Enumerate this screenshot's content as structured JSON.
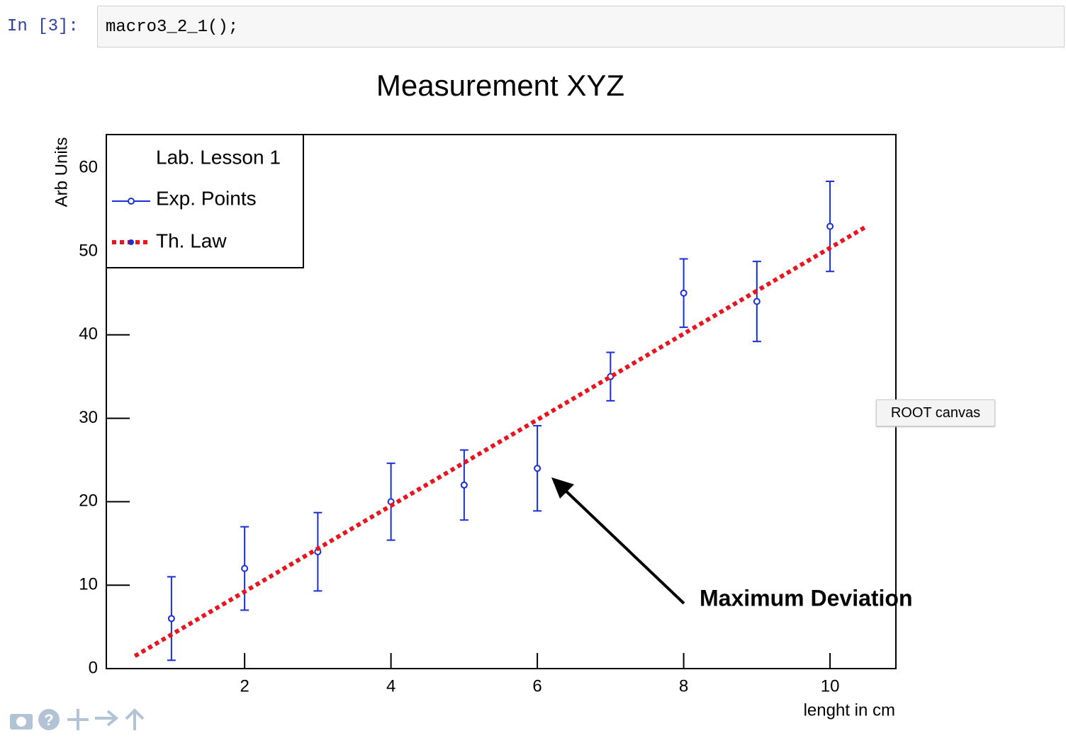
{
  "prompt": "In [3]:",
  "code": "macro3_2_1();",
  "tooltip": "ROOT canvas",
  "chart_data": {
    "type": "scatter",
    "title": "Measurement XYZ",
    "x_label": "lenght in cm",
    "y_label": "Arb Units",
    "xlim": [
      0.11,
      10.9
    ],
    "ylim": [
      0,
      64
    ],
    "xticks": [
      2,
      4,
      6,
      8,
      10
    ],
    "yticks": [
      0,
      10,
      20,
      30,
      40,
      50,
      60
    ],
    "legend_title": "Lab. Lesson 1",
    "legend": "top-left",
    "annotation": "Maximum Deviation",
    "series": [
      {
        "name": "Exp. Points",
        "mode": "markers",
        "color": "#1a2fd6",
        "x": [
          1,
          2,
          3,
          4,
          5,
          6,
          7,
          8,
          9,
          10
        ],
        "values": [
          6,
          12,
          14,
          20,
          22,
          24,
          35,
          45,
          44,
          53
        ],
        "errors": [
          5,
          5,
          4.7,
          4.6,
          4.2,
          5.1,
          2.9,
          4.1,
          4.8,
          5.4
        ]
      },
      {
        "name": "Th. Law",
        "mode": "line",
        "color": "#e8141e",
        "x": [
          0.5,
          10.5
        ],
        "values": [
          1.5,
          53
        ]
      }
    ]
  }
}
